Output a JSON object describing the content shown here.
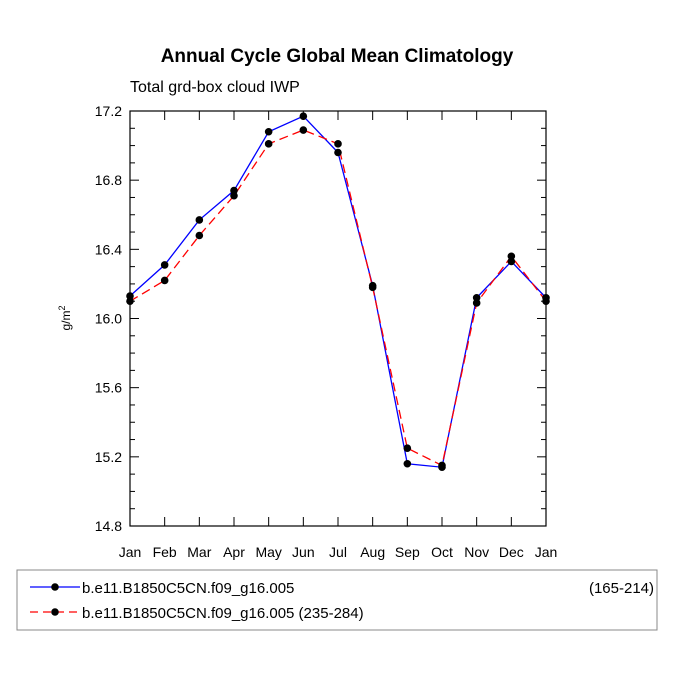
{
  "chart_data": {
    "type": "line",
    "title": "Annual Cycle Global Mean Climatology",
    "subtitle": "Total grd-box cloud IWP",
    "ylabel": "g/m",
    "ylabel_sup": "2",
    "xlabel": "",
    "categories": [
      "Jan",
      "Feb",
      "Mar",
      "Apr",
      "May",
      "Jun",
      "Jul",
      "Aug",
      "Sep",
      "Oct",
      "Nov",
      "Dec",
      "Jan"
    ],
    "ylim": [
      14.8,
      17.2
    ],
    "yticks": [
      "14.8",
      "15.2",
      "15.6",
      "16.0",
      "16.4",
      "16.8",
      "17.2"
    ],
    "series": [
      {
        "name": "b.e11.B1850C5CN.f09_g16.005",
        "range_label": "(165-214)",
        "color": "#0000ff",
        "dash": "solid",
        "values": [
          16.13,
          16.31,
          16.57,
          16.74,
          17.08,
          17.17,
          16.96,
          16.19,
          15.16,
          15.14,
          16.12,
          16.33,
          16.12
        ]
      },
      {
        "name": "b.e11.B1850C5CN.f09_g16.005 (235-284)",
        "range_label": "",
        "color": "#ff0000",
        "dash": "dashed",
        "values": [
          16.1,
          16.22,
          16.48,
          16.71,
          17.01,
          17.09,
          17.01,
          16.18,
          15.25,
          15.15,
          16.09,
          16.36,
          16.1
        ]
      }
    ],
    "marker_color": "#000000",
    "grid": false,
    "legend_position": "bottom"
  }
}
